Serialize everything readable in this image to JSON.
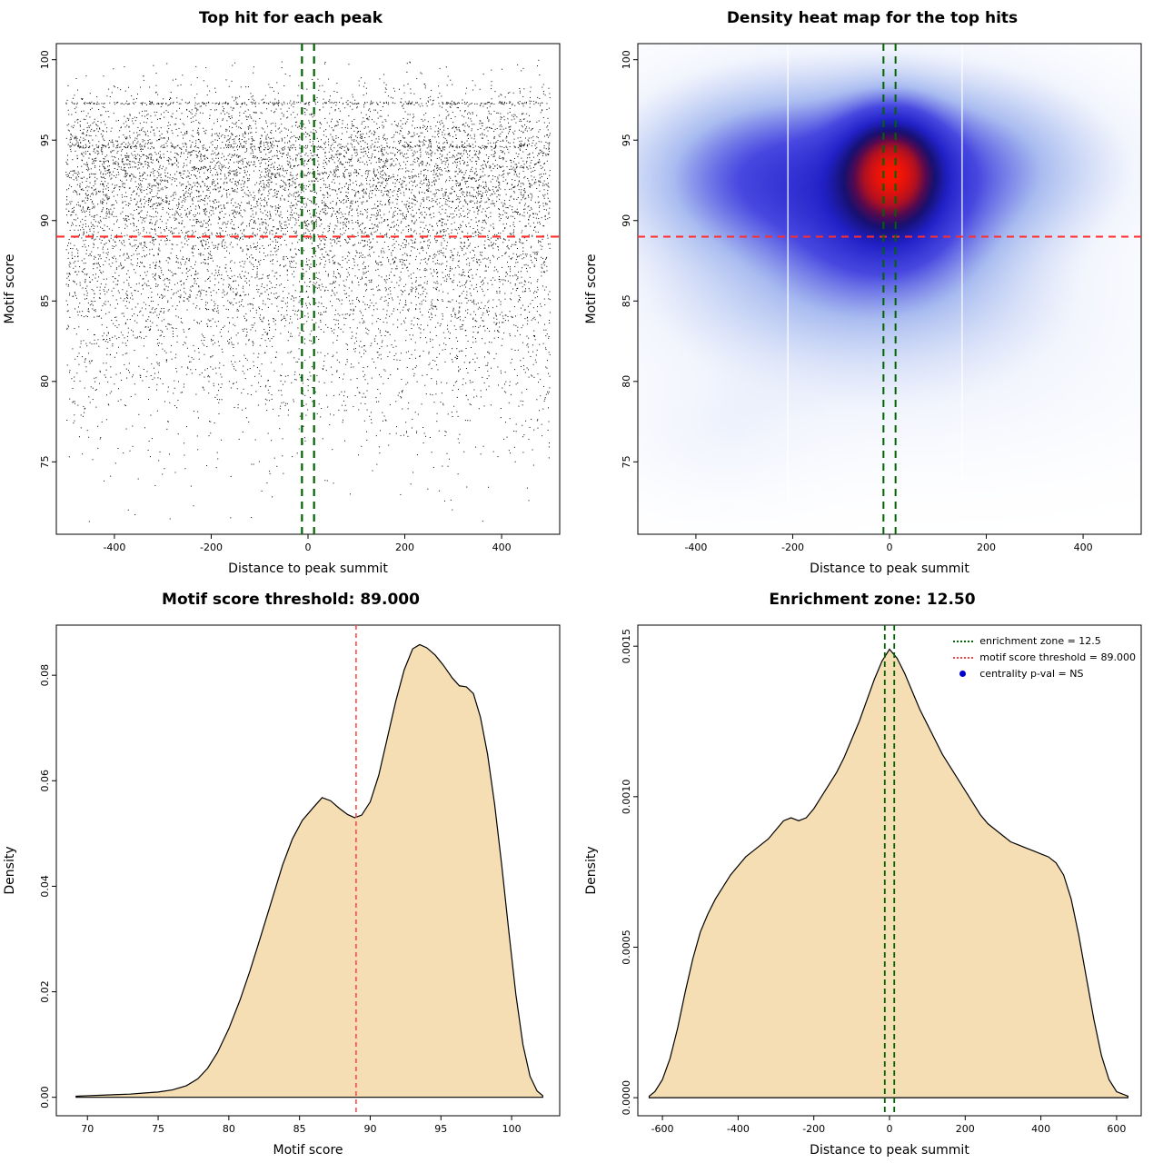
{
  "figure": {
    "background": "#ffffff"
  },
  "chart_data": [
    {
      "id": "top-hit-scatter",
      "type": "scatter",
      "title": "Top hit for each peak",
      "xlabel": "Distance to peak summit",
      "ylabel": "Motif score",
      "xlim": [
        -520,
        520
      ],
      "ylim": [
        70.5,
        101
      ],
      "xticks": [
        -400,
        -200,
        0,
        200,
        400
      ],
      "xtick_labels": [
        "-400",
        "-200",
        "0",
        "200",
        "400"
      ],
      "yticks": [
        75,
        80,
        85,
        90,
        95,
        100
      ],
      "ytick_labels": [
        "75",
        "80",
        "85",
        "90",
        "95",
        "100"
      ],
      "point_color": "#000000",
      "point_distribution": {
        "n": 9500,
        "x_range": [
          -500,
          500
        ],
        "y_components": [
          {
            "weight": 0.45,
            "mean": 93.6,
            "sd": 2.3
          },
          {
            "weight": 0.28,
            "mean": 89.0,
            "sd": 3.0
          },
          {
            "weight": 0.18,
            "mean": 85.0,
            "sd": 3.4
          },
          {
            "weight": 0.09,
            "mean": 80.5,
            "sd": 3.8
          }
        ],
        "bands": [
          {
            "y": 97.3,
            "n": 280
          },
          {
            "y": 94.6,
            "n": 170
          }
        ],
        "y_clamp": [
          71,
          100
        ]
      },
      "lines": [
        {
          "orientation": "h",
          "value": 89,
          "color": "#ff2d2d",
          "width": 2.2,
          "dash": [
            9,
            7
          ]
        },
        {
          "orientation": "v",
          "value": -12.5,
          "color": "#006400",
          "width": 2.2,
          "dash": [
            8,
            6
          ]
        },
        {
          "orientation": "v",
          "value": 12.5,
          "color": "#006400",
          "width": 2.2,
          "dash": [
            8,
            6
          ]
        }
      ]
    },
    {
      "id": "top-hit-density-heatmap",
      "type": "heatmap",
      "title": "Density heat map for the top hits",
      "xlabel": "Distance to peak summit",
      "ylabel": "Motif score",
      "xlim": [
        -520,
        520
      ],
      "ylim": [
        70.5,
        101
      ],
      "xticks": [
        -400,
        -200,
        0,
        200,
        400
      ],
      "xtick_labels": [
        "-400",
        "-200",
        "0",
        "200",
        "400"
      ],
      "yticks": [
        75,
        80,
        85,
        90,
        95,
        100
      ],
      "ytick_labels": [
        "75",
        "80",
        "85",
        "90",
        "95",
        "100"
      ],
      "gamma": 0.78,
      "density_components": [
        {
          "w": 0.5,
          "x": -80,
          "y": 92.8,
          "sx": 270,
          "sy": 4.0
        },
        {
          "w": 0.3,
          "x": 120,
          "y": 93.5,
          "sx": 200,
          "sy": 3.2
        },
        {
          "w": 0.28,
          "x": -290,
          "y": 92.5,
          "sx": 150,
          "sy": 3.4
        },
        {
          "w": 1.0,
          "x": 5,
          "y": 93.2,
          "sx": 68,
          "sy": 2.4
        },
        {
          "w": 0.4,
          "x": -10,
          "y": 88.8,
          "sx": 140,
          "sy": 2.6
        },
        {
          "w": 0.22,
          "x": -60,
          "y": 84.8,
          "sx": 280,
          "sy": 2.6
        },
        {
          "w": 0.1,
          "x": 0,
          "y": 80.0,
          "sx": 320,
          "sy": 3.2
        },
        {
          "w": 0.07,
          "x": -350,
          "y": 76.5,
          "sx": 130,
          "sy": 2.5
        }
      ],
      "color_stops": [
        {
          "t": 0.0,
          "color": "#ffffff"
        },
        {
          "t": 0.1,
          "color": "#f2f5fd"
        },
        {
          "t": 0.28,
          "color": "#a9bcf0"
        },
        {
          "t": 0.45,
          "color": "#4747e0"
        },
        {
          "t": 0.6,
          "color": "#2121c8"
        },
        {
          "t": 0.72,
          "color": "#161070"
        },
        {
          "t": 0.8,
          "color": "#55094f"
        },
        {
          "t": 0.88,
          "color": "#ad1022"
        },
        {
          "t": 1.0,
          "color": "#ff1400"
        }
      ],
      "white_lines_x": [
        -210,
        150
      ],
      "lines": [
        {
          "orientation": "h",
          "value": 89,
          "color": "#ff2d2d",
          "width": 2,
          "dash": [
            8,
            6
          ]
        },
        {
          "orientation": "v",
          "value": -12.5,
          "color": "#006400",
          "width": 2,
          "dash": [
            8,
            6
          ]
        },
        {
          "orientation": "v",
          "value": 12.5,
          "color": "#006400",
          "width": 2,
          "dash": [
            8,
            6
          ]
        }
      ]
    },
    {
      "id": "motif-score-density",
      "type": "area",
      "title": "Motif score threshold: 89.000",
      "xlabel": "Motif score",
      "ylabel": "Density",
      "xlim": [
        67.8,
        103.4
      ],
      "ylim": [
        -0.0035,
        0.0895
      ],
      "xticks": [
        70,
        75,
        80,
        85,
        90,
        95,
        100
      ],
      "xtick_labels": [
        "70",
        "75",
        "80",
        "85",
        "90",
        "95",
        "100"
      ],
      "yticks": [
        0,
        0.02,
        0.04,
        0.06,
        0.08
      ],
      "ytick_labels": [
        "0.00",
        "0.02",
        "0.04",
        "0.06",
        "0.08"
      ],
      "fill_color": "#f5deb3",
      "line_color": "#000000",
      "points": [
        [
          69.2,
          0.0002
        ],
        [
          70,
          0.0003
        ],
        [
          71,
          0.0004
        ],
        [
          72,
          0.0005
        ],
        [
          73,
          0.0006
        ],
        [
          74,
          0.0008
        ],
        [
          75,
          0.001
        ],
        [
          76,
          0.0014
        ],
        [
          77,
          0.0022
        ],
        [
          77.8,
          0.0035
        ],
        [
          78.5,
          0.0055
        ],
        [
          79.2,
          0.0085
        ],
        [
          80,
          0.013
        ],
        [
          80.8,
          0.0185
        ],
        [
          81.5,
          0.024
        ],
        [
          82.2,
          0.03
        ],
        [
          83,
          0.037
        ],
        [
          83.8,
          0.044
        ],
        [
          84.5,
          0.049
        ],
        [
          85.2,
          0.0525
        ],
        [
          86,
          0.055
        ],
        [
          86.6,
          0.0568
        ],
        [
          87.2,
          0.0562
        ],
        [
          87.8,
          0.0548
        ],
        [
          88.4,
          0.0536
        ],
        [
          88.9,
          0.053
        ],
        [
          89.4,
          0.0535
        ],
        [
          90,
          0.056
        ],
        [
          90.6,
          0.061
        ],
        [
          91.2,
          0.068
        ],
        [
          91.8,
          0.075
        ],
        [
          92.4,
          0.081
        ],
        [
          93,
          0.085
        ],
        [
          93.5,
          0.0858
        ],
        [
          94,
          0.0852
        ],
        [
          94.6,
          0.0838
        ],
        [
          95.2,
          0.0818
        ],
        [
          95.8,
          0.0795
        ],
        [
          96.3,
          0.078
        ],
        [
          96.8,
          0.0778
        ],
        [
          97.3,
          0.0765
        ],
        [
          97.8,
          0.072
        ],
        [
          98.3,
          0.065
        ],
        [
          98.8,
          0.0555
        ],
        [
          99.3,
          0.044
        ],
        [
          99.8,
          0.0315
        ],
        [
          100.3,
          0.0195
        ],
        [
          100.8,
          0.01
        ],
        [
          101.3,
          0.004
        ],
        [
          101.8,
          0.0012
        ],
        [
          102.2,
          0.0003
        ]
      ],
      "lines": [
        {
          "orientation": "v",
          "value": 89,
          "color": "#ff4040",
          "width": 1.5,
          "dash": [
            5,
            4
          ]
        }
      ]
    },
    {
      "id": "summit-distance-density",
      "type": "area",
      "title": "Enrichment zone: 12.50",
      "xlabel": "Distance to peak summit",
      "ylabel": "Density",
      "xlim": [
        -665,
        665
      ],
      "ylim": [
        -6e-05,
        0.00157
      ],
      "xticks": [
        -600,
        -400,
        -200,
        0,
        200,
        400,
        600
      ],
      "xtick_labels": [
        "-600",
        "-400",
        "-200",
        "0",
        "200",
        "400",
        "600"
      ],
      "yticks": [
        0,
        0.0005,
        0.001,
        0.0015
      ],
      "ytick_labels": [
        "0.0000",
        "0.0005",
        "0.0010",
        "0.0015"
      ],
      "fill_color": "#f5deb3",
      "line_color": "#000000",
      "points": [
        [
          -635,
          5e-06
        ],
        [
          -620,
          2e-05
        ],
        [
          -600,
          6e-05
        ],
        [
          -580,
          0.00013
        ],
        [
          -560,
          0.00023
        ],
        [
          -540,
          0.00035
        ],
        [
          -520,
          0.00046
        ],
        [
          -500,
          0.00055
        ],
        [
          -480,
          0.00061
        ],
        [
          -460,
          0.00066
        ],
        [
          -440,
          0.0007
        ],
        [
          -420,
          0.00074
        ],
        [
          -400,
          0.00077
        ],
        [
          -380,
          0.0008
        ],
        [
          -360,
          0.00082
        ],
        [
          -340,
          0.00084
        ],
        [
          -320,
          0.00086
        ],
        [
          -300,
          0.00089
        ],
        [
          -280,
          0.00092
        ],
        [
          -260,
          0.00093
        ],
        [
          -240,
          0.00092
        ],
        [
          -220,
          0.00093
        ],
        [
          -200,
          0.00096
        ],
        [
          -180,
          0.001
        ],
        [
          -160,
          0.00104
        ],
        [
          -140,
          0.00108
        ],
        [
          -120,
          0.00113
        ],
        [
          -100,
          0.00119
        ],
        [
          -80,
          0.00125
        ],
        [
          -60,
          0.00132
        ],
        [
          -40,
          0.00139
        ],
        [
          -20,
          0.00145
        ],
        [
          0,
          0.00149
        ],
        [
          20,
          0.00146
        ],
        [
          40,
          0.00141
        ],
        [
          60,
          0.00135
        ],
        [
          80,
          0.00129
        ],
        [
          100,
          0.00124
        ],
        [
          120,
          0.00119
        ],
        [
          140,
          0.00114
        ],
        [
          160,
          0.0011
        ],
        [
          180,
          0.00106
        ],
        [
          200,
          0.00102
        ],
        [
          220,
          0.00098
        ],
        [
          240,
          0.00094
        ],
        [
          260,
          0.00091
        ],
        [
          280,
          0.00089
        ],
        [
          300,
          0.00087
        ],
        [
          320,
          0.00085
        ],
        [
          340,
          0.00084
        ],
        [
          360,
          0.00083
        ],
        [
          380,
          0.00082
        ],
        [
          400,
          0.00081
        ],
        [
          420,
          0.0008
        ],
        [
          440,
          0.00078
        ],
        [
          460,
          0.00074
        ],
        [
          480,
          0.00066
        ],
        [
          500,
          0.00054
        ],
        [
          520,
          0.0004
        ],
        [
          540,
          0.00026
        ],
        [
          560,
          0.00014
        ],
        [
          580,
          6e-05
        ],
        [
          600,
          2e-05
        ],
        [
          630,
          5e-06
        ]
      ],
      "lines": [
        {
          "orientation": "v",
          "value": -12.5,
          "color": "#006400",
          "width": 1.8,
          "dash": [
            6,
            4
          ]
        },
        {
          "orientation": "v",
          "value": 12.5,
          "color": "#006400",
          "width": 1.8,
          "dash": [
            6,
            4
          ]
        }
      ],
      "legend": {
        "items": [
          {
            "label": "enrichment zone = 12.5",
            "marker": "dotted-line",
            "color": "#006400"
          },
          {
            "label": "motif score threshold = 89.000",
            "marker": "dotted-line",
            "color": "#ff4040"
          },
          {
            "label": "centrality p-val = NS",
            "marker": "point",
            "color": "#0000cd"
          }
        ]
      }
    }
  ]
}
